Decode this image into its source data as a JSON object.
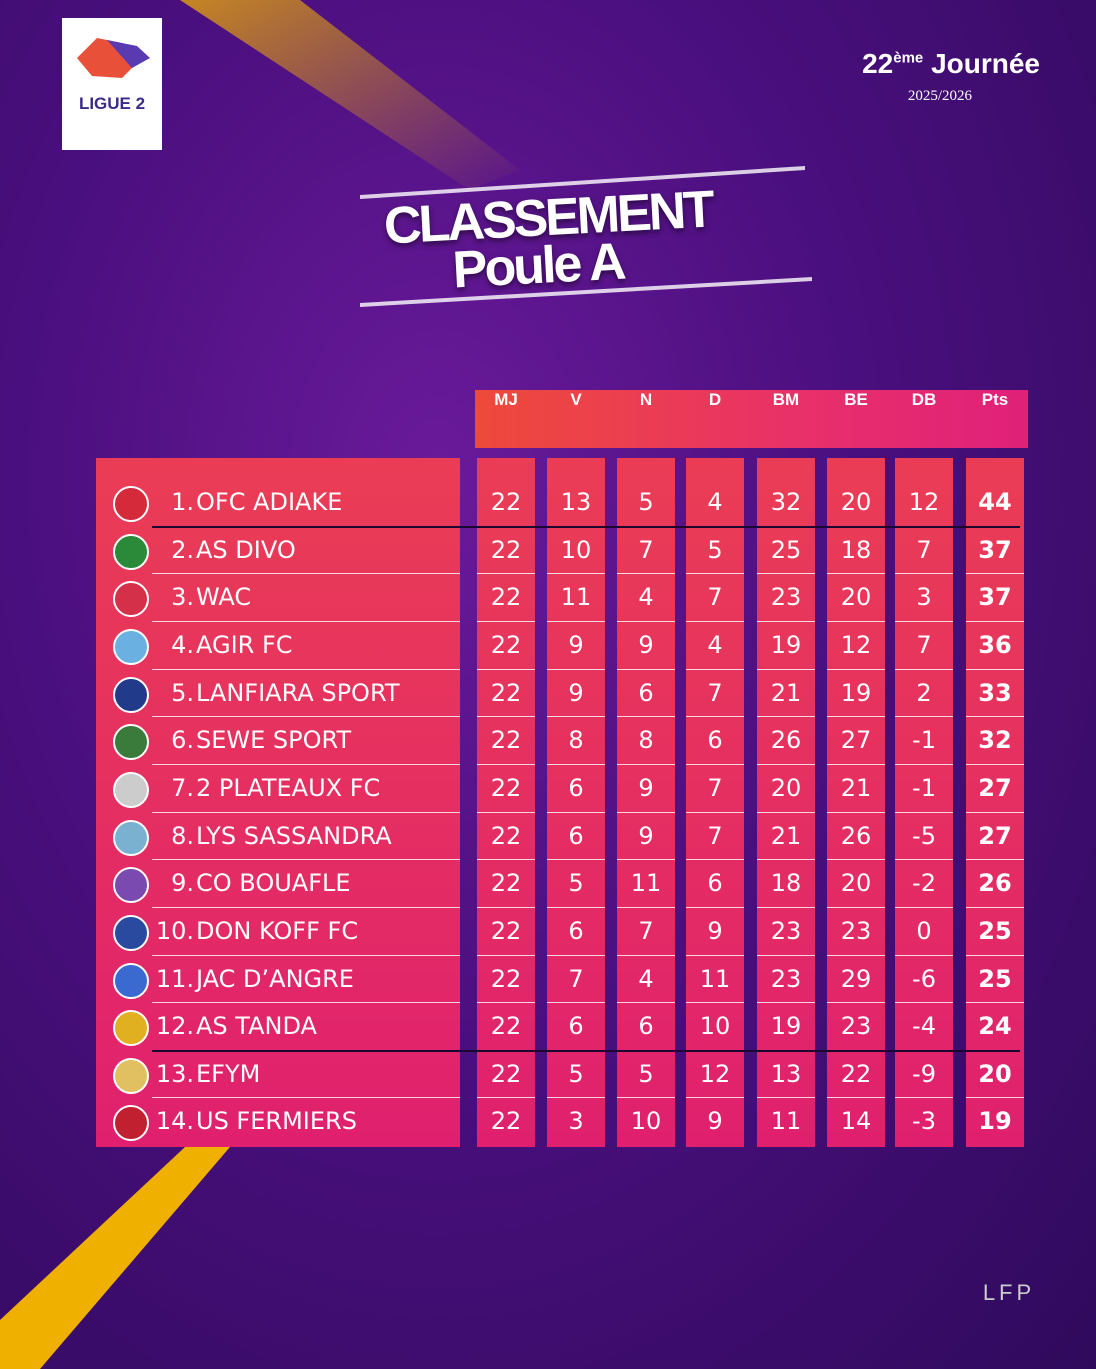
{
  "header": {
    "logo_text": "LIGUE 2",
    "matchday_number": "22",
    "matchday_sup": "ème",
    "matchday_word": "Journée",
    "season": "2025/2026"
  },
  "title": {
    "line1": "CLASSEMENT",
    "line2": "Poule A"
  },
  "table": {
    "columns": [
      "MJ",
      "V",
      "N",
      "D",
      "BM",
      "BE",
      "DB",
      "Pts"
    ],
    "rows": [
      [
        "1.",
        "OFC ADIAKE",
        22,
        13,
        5,
        4,
        32,
        20,
        12,
        44
      ],
      [
        "2.",
        "AS DIVO",
        22,
        10,
        7,
        5,
        25,
        18,
        7,
        37
      ],
      [
        "3.",
        "WAC",
        22,
        11,
        4,
        7,
        23,
        20,
        3,
        37
      ],
      [
        "4.",
        "AGIR FC",
        22,
        9,
        9,
        4,
        19,
        12,
        7,
        36
      ],
      [
        "5.",
        "LANFIARA SPORT",
        22,
        9,
        6,
        7,
        21,
        19,
        2,
        33
      ],
      [
        "6.",
        "SEWE SPORT",
        22,
        8,
        8,
        6,
        26,
        27,
        -1,
        32
      ],
      [
        "7.",
        "2 PLATEAUX FC",
        22,
        6,
        9,
        7,
        20,
        21,
        -1,
        27
      ],
      [
        "8.",
        "LYS SASSANDRA",
        22,
        6,
        9,
        7,
        21,
        26,
        -5,
        27
      ],
      [
        "9.",
        "CO BOUAFLE",
        22,
        5,
        11,
        6,
        18,
        20,
        -2,
        26
      ],
      [
        "10.",
        "DON KOFF FC",
        22,
        6,
        7,
        9,
        23,
        23,
        0,
        25
      ],
      [
        "11.",
        "JAC D’ANGRE",
        22,
        7,
        4,
        11,
        23,
        29,
        -6,
        25
      ],
      [
        "12.",
        "AS TANDA",
        22,
        6,
        6,
        10,
        19,
        23,
        -4,
        24
      ],
      [
        "13.",
        "EFYM",
        22,
        5,
        5,
        12,
        13,
        22,
        -9,
        20
      ],
      [
        "14.",
        "US FERMIERS",
        22,
        3,
        10,
        9,
        11,
        14,
        -3,
        19
      ]
    ]
  },
  "footer": {
    "logo_text": "LFP"
  }
}
